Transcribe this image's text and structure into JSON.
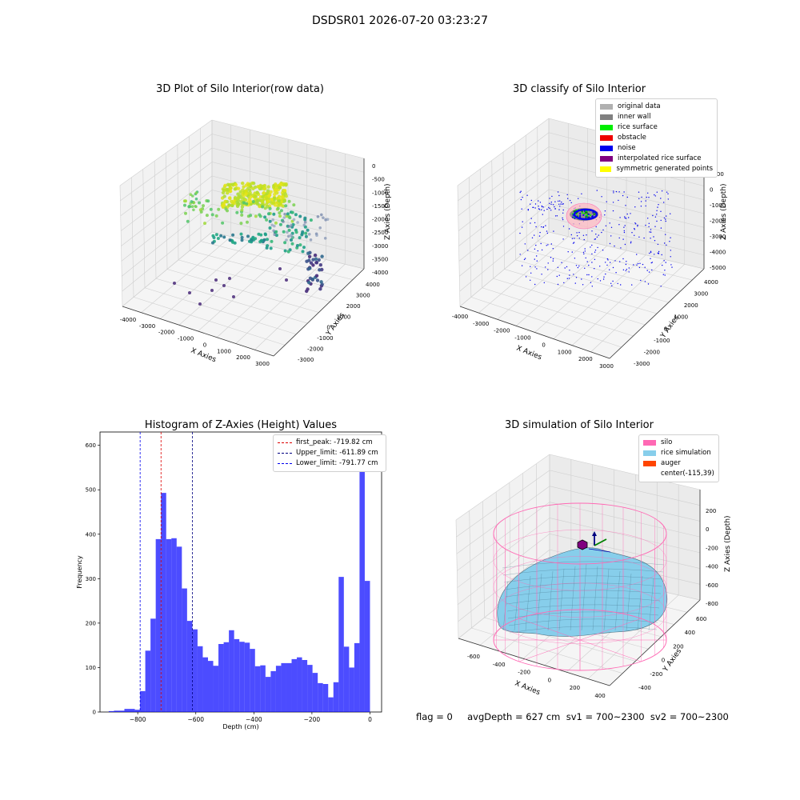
{
  "suptitle": "DSDSR01 2026-07-20 03:23:27",
  "panel1": {
    "title": "3D Plot of Silo Interior(row data)",
    "xlabel": "X Axies",
    "ylabel": "Y Axies",
    "zlabel": "Z Axies (Depth)",
    "xticks": [
      "-4000",
      "-3000",
      "-2000",
      "-1000",
      "0",
      "1000",
      "2000",
      "3000"
    ],
    "yticks": [
      "-3000",
      "-2000",
      "-1000",
      "0",
      "1000",
      "2000",
      "3000",
      "4000"
    ],
    "zticks": [
      "0",
      "-500",
      "-1000",
      "-1500",
      "-2000",
      "-2500",
      "-3000",
      "-3500",
      "-4000"
    ]
  },
  "panel2": {
    "title": "3D classify of Silo Interior",
    "xlabel": "X Axies",
    "ylabel": "Y Axies",
    "zlabel": "Z Axies (Depth)",
    "xticks": [
      "-4000",
      "-3000",
      "-2000",
      "-1000",
      "0",
      "1000",
      "2000",
      "3000"
    ],
    "yticks": [
      "-3000",
      "-2000",
      "-1000",
      "0",
      "1000",
      "2000",
      "3000",
      "4000"
    ],
    "zticks": [
      "1000",
      "0",
      "-1000",
      "-2000",
      "-3000",
      "-4000",
      "-5000"
    ],
    "legend": [
      {
        "label": "original data",
        "color": "#b0b0b0"
      },
      {
        "label": "inner wall",
        "color": "#808080"
      },
      {
        "label": "rice surface",
        "color": "#00ee00"
      },
      {
        "label": "obstacle",
        "color": "#ee0000"
      },
      {
        "label": "noise",
        "color": "#0000ee"
      },
      {
        "label": "interpolated rice surface",
        "color": "#800080"
      },
      {
        "label": "symmetric generated points",
        "color": "#ffff00"
      }
    ]
  },
  "panel4": {
    "title": "3D simulation of Silo Interior",
    "xlabel": "X Axies",
    "ylabel": "Y Axies",
    "zlabel": "Z Axies (Depth)",
    "xticks": [
      "-600",
      "-400",
      "-200",
      "0",
      "200",
      "400"
    ],
    "yticks": [
      "-400",
      "-200",
      "0",
      "200",
      "400",
      "600"
    ],
    "zticks": [
      "200",
      "0",
      "-200",
      "-400",
      "-600",
      "-800"
    ],
    "legend": [
      {
        "label": "silo",
        "color": "#ff69b4"
      },
      {
        "label": "rice simulation",
        "color": "#87ceeb"
      },
      {
        "label": "auger",
        "color": "#ff4500"
      },
      {
        "label": "center(-115,39)",
        "color": ""
      }
    ]
  },
  "footer": {
    "text": "flag = 0     avgDepth = 627 cm  sv1 = 700~2300  sv2 = 700~2300"
  },
  "chart_data": [
    {
      "type": "histogram",
      "title": "Histogram of Z-Axies (Height) Values",
      "xlabel": "Depth (cm)",
      "ylabel": "Frequency",
      "xlim": [
        -930,
        40
      ],
      "ylim": [
        0,
        630
      ],
      "xticks": [
        -800,
        -600,
        -400,
        -200,
        0
      ],
      "yticks": [
        0,
        100,
        200,
        300,
        400,
        500,
        600
      ],
      "bin_start": -900,
      "bin_width": 18,
      "counts": [
        2,
        3,
        3,
        7,
        7,
        5,
        47,
        138,
        210,
        389,
        493,
        389,
        391,
        372,
        278,
        205,
        186,
        148,
        123,
        115,
        104,
        153,
        157,
        184,
        164,
        158,
        156,
        142,
        103,
        105,
        79,
        92,
        104,
        110,
        110,
        119,
        123,
        117,
        106,
        88,
        65,
        63,
        33,
        67,
        304,
        147,
        100,
        155,
        598,
        295
      ],
      "color": "#0000ff",
      "series": [
        {
          "name": "first_peak: -719.82 cm",
          "value": -719.82,
          "color": "#dd0000"
        },
        {
          "name": "Upper_limit: -611.89 cm",
          "value": -611.89,
          "color": "#000080"
        },
        {
          "name": "Lower_limit: -791.77 cm",
          "value": -791.77,
          "color": "#0000ee"
        }
      ]
    }
  ]
}
